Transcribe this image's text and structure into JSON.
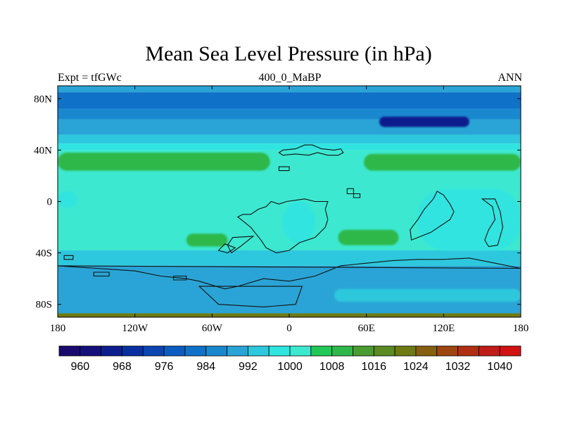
{
  "chart_data": {
    "type": "heatmap",
    "title": "Mean Sea Level Pressure (in hPa)",
    "left_subtitle": "Expt = tfGWc",
    "center_subtitle": "400_0_MaBP",
    "right_subtitle": "ANN",
    "xlim": [
      -180,
      180
    ],
    "ylim": [
      -90,
      90
    ],
    "x_ticks": [
      {
        "value": -180,
        "label": "180"
      },
      {
        "value": -120,
        "label": "120W"
      },
      {
        "value": -60,
        "label": "60W"
      },
      {
        "value": 0,
        "label": "0"
      },
      {
        "value": 60,
        "label": "60E"
      },
      {
        "value": 120,
        "label": "120E"
      },
      {
        "value": 180,
        "label": "180"
      }
    ],
    "y_ticks": [
      {
        "value": 80,
        "label": "80N"
      },
      {
        "value": 40,
        "label": "40N"
      },
      {
        "value": 0,
        "label": "0"
      },
      {
        "value": -40,
        "label": "40S"
      },
      {
        "value": -80,
        "label": "80S"
      }
    ],
    "zonal_bands": [
      {
        "lat_min": 85,
        "lat_max": 90,
        "hpa": 990
      },
      {
        "lat_min": 72,
        "lat_max": 85,
        "hpa": 980
      },
      {
        "lat_min": 64,
        "lat_max": 72,
        "hpa": 984
      },
      {
        "lat_min": 52,
        "lat_max": 64,
        "hpa": 988
      },
      {
        "lat_min": 45,
        "lat_max": 52,
        "hpa": 992
      },
      {
        "lat_min": 40,
        "lat_max": 45,
        "hpa": 998
      },
      {
        "lat_min": -38,
        "lat_max": 40,
        "hpa": 1002
      },
      {
        "lat_min": -50,
        "lat_max": -38,
        "hpa": 995
      },
      {
        "lat_min": -87,
        "lat_max": -50,
        "hpa": 988
      },
      {
        "lat_min": -90,
        "lat_max": -87,
        "hpa": 1020
      }
    ],
    "features": [
      {
        "name": "north-pacific-high",
        "lon_range": [
          -180,
          -15
        ],
        "lat_range": [
          24,
          38
        ],
        "hpa": 1008
      },
      {
        "name": "north-atlantic-high",
        "lon_range": [
          58,
          180
        ],
        "lat_range": [
          24,
          37
        ],
        "hpa": 1008
      },
      {
        "name": "south-hemisphere-high-west",
        "lon_range": [
          -80,
          -48
        ],
        "lat_range": [
          -35,
          -25
        ],
        "hpa": 1008
      },
      {
        "name": "south-hemisphere-high-east",
        "lon_range": [
          38,
          85
        ],
        "lat_range": [
          -34,
          -22
        ],
        "hpa": 1008
      },
      {
        "name": "arctic-low",
        "lon_range": [
          70,
          140
        ],
        "lat_range": [
          58,
          66
        ],
        "hpa": 964
      },
      {
        "name": "tropical-low-east",
        "lon_range": [
          100,
          180
        ],
        "lat_range": [
          -38,
          10
        ],
        "hpa": 996
      },
      {
        "name": "tropical-low-center",
        "lon_range": [
          -5,
          20
        ],
        "lat_range": [
          -32,
          0
        ],
        "hpa": 996
      },
      {
        "name": "tropical-low-west",
        "lon_range": [
          -180,
          -165
        ],
        "lat_range": [
          -5,
          8
        ],
        "hpa": 996
      },
      {
        "name": "southern-ocean-band",
        "lon_range": [
          35,
          180
        ],
        "lat_range": [
          -78,
          -68
        ],
        "hpa": 994
      }
    ],
    "colorbar": {
      "levels": [
        956,
        960,
        964,
        968,
        972,
        976,
        980,
        984,
        988,
        992,
        996,
        1000,
        1004,
        1008,
        1012,
        1016,
        1020,
        1024,
        1028,
        1032,
        1036,
        1040,
        1044
      ],
      "colors": [
        "#1b0a6e",
        "#14117a",
        "#0d1f8c",
        "#0830a0",
        "#0a45b2",
        "#0c5cc0",
        "#0f72c8",
        "#1a88cf",
        "#2aa4d6",
        "#2dc8dd",
        "#30e4e0",
        "#3ce8d0",
        "#22c856",
        "#2fb84a",
        "#4a9c30",
        "#5a8a20",
        "#6e7a14",
        "#866010",
        "#9e4610",
        "#b02f12",
        "#c01d18",
        "#d21212"
      ],
      "tick_labels": [
        {
          "value": 960,
          "label": "960"
        },
        {
          "value": 968,
          "label": "968"
        },
        {
          "value": 976,
          "label": "976"
        },
        {
          "value": 984,
          "label": "984"
        },
        {
          "value": 992,
          "label": "992"
        },
        {
          "value": 1000,
          "label": "1000"
        },
        {
          "value": 1008,
          "label": "1008"
        },
        {
          "value": 1016,
          "label": "1016"
        },
        {
          "value": 1024,
          "label": "1024"
        },
        {
          "value": 1032,
          "label": "1032"
        },
        {
          "value": 1040,
          "label": "1040"
        }
      ]
    },
    "coastlines": [
      {
        "name": "eurasia-north",
        "points": [
          [
            -5,
            40
          ],
          [
            5,
            41
          ],
          [
            12,
            44
          ],
          [
            18,
            44
          ],
          [
            25,
            41
          ],
          [
            35,
            40
          ],
          [
            40,
            41
          ],
          [
            42,
            38
          ],
          [
            38,
            36
          ],
          [
            30,
            36
          ],
          [
            22,
            38
          ],
          [
            15,
            36
          ],
          [
            5,
            37
          ],
          [
            -5,
            36
          ],
          [
            -8,
            38
          ]
        ]
      },
      {
        "name": "europe-small-island",
        "points": [
          [
            -8,
            27
          ],
          [
            0,
            27
          ],
          [
            0,
            24
          ],
          [
            -8,
            24
          ]
        ]
      },
      {
        "name": "arabian-block",
        "points": [
          [
            45,
            10
          ],
          [
            50,
            10
          ],
          [
            50,
            6
          ],
          [
            55,
            6
          ],
          [
            55,
            3
          ],
          [
            50,
            3
          ],
          [
            50,
            6
          ],
          [
            45,
            6
          ]
        ]
      },
      {
        "name": "africa-south-america",
        "points": [
          [
            -40,
            -12
          ],
          [
            -35,
            -16
          ],
          [
            -30,
            -20
          ],
          [
            -22,
            -30
          ],
          [
            -18,
            -36
          ],
          [
            -10,
            -40
          ],
          [
            0,
            -38
          ],
          [
            8,
            -32
          ],
          [
            20,
            -28
          ],
          [
            28,
            -20
          ],
          [
            30,
            -14
          ],
          [
            28,
            -6
          ],
          [
            30,
            0
          ],
          [
            20,
            0
          ],
          [
            12,
            2
          ],
          [
            5,
            1
          ],
          [
            -2,
            0
          ],
          [
            -8,
            -2
          ],
          [
            -14,
            0
          ],
          [
            -18,
            -4
          ],
          [
            -24,
            -6
          ],
          [
            -30,
            -10
          ],
          [
            -36,
            -10
          ]
        ]
      },
      {
        "name": "africa-east-coast",
        "points": [
          [
            -28,
            -27
          ],
          [
            -38,
            -35
          ],
          [
            -45,
            -40
          ],
          [
            -48,
            -34
          ],
          [
            -44,
            -28
          ]
        ]
      },
      {
        "name": "south-america-tail",
        "points": [
          [
            -50,
            -33
          ],
          [
            -55,
            -38
          ],
          [
            -48,
            -40
          ],
          [
            -42,
            -36
          ]
        ]
      },
      {
        "name": "antarctica-south-margin",
        "points": [
          [
            -180,
            -50
          ],
          [
            -150,
            -52
          ],
          [
            -120,
            -54
          ],
          [
            -100,
            -58
          ],
          [
            -80,
            -60
          ],
          [
            -70,
            -62
          ],
          [
            -60,
            -65
          ],
          [
            -50,
            -68
          ],
          [
            -40,
            -66
          ],
          [
            -20,
            -60
          ],
          [
            0,
            -62
          ],
          [
            20,
            -58
          ],
          [
            40,
            -50
          ],
          [
            60,
            -48
          ],
          [
            80,
            -46
          ],
          [
            100,
            -45
          ],
          [
            120,
            -45
          ],
          [
            140,
            -44
          ],
          [
            160,
            -48
          ],
          [
            180,
            -52
          ]
        ]
      },
      {
        "name": "antarctica-interior",
        "points": [
          [
            -70,
            -66
          ],
          [
            -55,
            -80
          ],
          [
            -20,
            -82
          ],
          [
            5,
            -80
          ],
          [
            10,
            -66
          ]
        ]
      },
      {
        "name": "australia-block",
        "points": [
          [
            95,
            -30
          ],
          [
            110,
            -24
          ],
          [
            125,
            -14
          ],
          [
            128,
            -8
          ],
          [
            125,
            -2
          ],
          [
            120,
            5
          ],
          [
            115,
            8
          ],
          [
            112,
            2
          ],
          [
            105,
            -6
          ],
          [
            100,
            -14
          ],
          [
            94,
            -22
          ]
        ]
      },
      {
        "name": "pacific-island-east",
        "points": [
          [
            150,
            2
          ],
          [
            158,
            -4
          ],
          [
            160,
            -14
          ],
          [
            155,
            -22
          ],
          [
            152,
            -30
          ],
          [
            155,
            -35
          ],
          [
            162,
            -34
          ],
          [
            166,
            -20
          ],
          [
            164,
            -8
          ],
          [
            160,
            2
          ]
        ]
      },
      {
        "name": "small-block-southwest",
        "points": [
          [
            -152,
            -55
          ],
          [
            -140,
            -55
          ],
          [
            -140,
            -58
          ],
          [
            -152,
            -58
          ]
        ]
      },
      {
        "name": "small-block-west",
        "points": [
          [
            -175,
            -42
          ],
          [
            -168,
            -42
          ],
          [
            -168,
            -45
          ],
          [
            -175,
            -45
          ]
        ]
      },
      {
        "name": "small-block-southwest-2",
        "points": [
          [
            -90,
            -58
          ],
          [
            -80,
            -58
          ],
          [
            -80,
            -61
          ],
          [
            -90,
            -61
          ]
        ]
      }
    ]
  }
}
